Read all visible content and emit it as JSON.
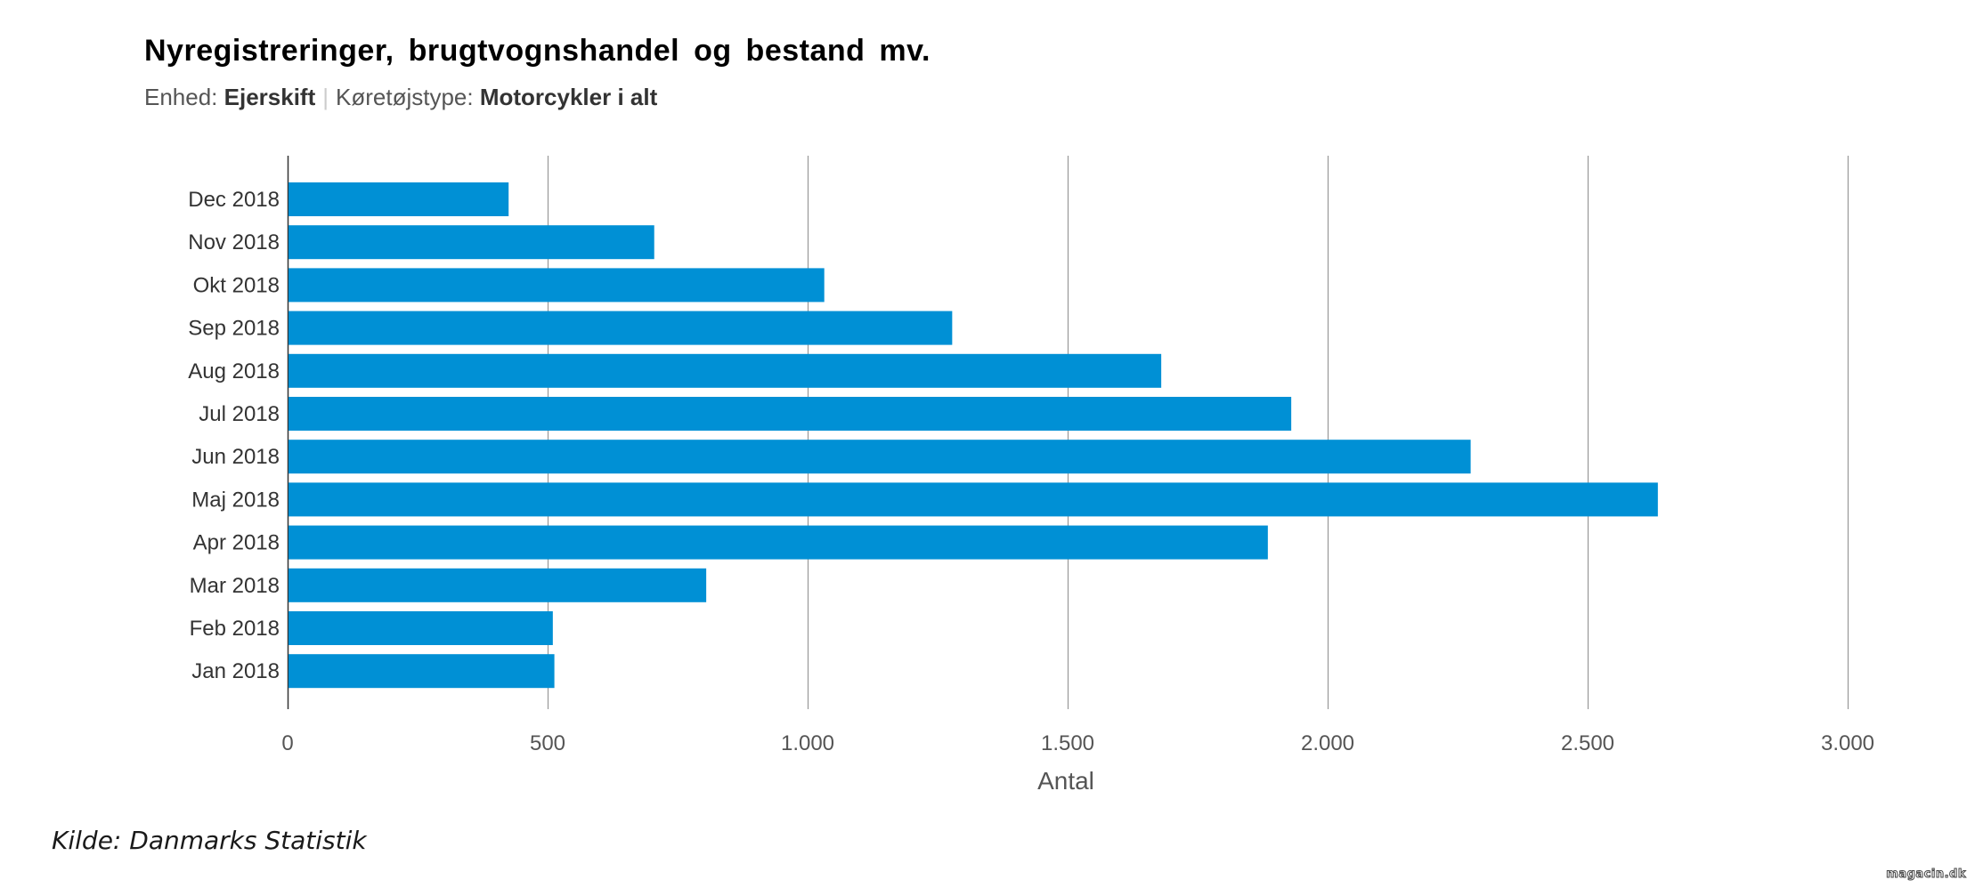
{
  "chart_data": {
    "type": "bar",
    "orientation": "horizontal",
    "title": "Nyregistreringer, brugtvognshandel og bestand mv.",
    "subtitle": {
      "unit_label": "Enhed:",
      "unit_value": "Ejerskift",
      "type_label": "Køretøjstype:",
      "type_value": "Motorcykler i alt"
    },
    "categories": [
      "Dec 2018",
      "Nov 2018",
      "Okt 2018",
      "Sep 2018",
      "Aug 2018",
      "Jul 2018",
      "Jun 2018",
      "Maj 2018",
      "Apr 2018",
      "Mar 2018",
      "Feb 2018",
      "Jan 2018"
    ],
    "values": [
      425,
      705,
      1032,
      1278,
      1680,
      1930,
      2275,
      2635,
      1885,
      805,
      510,
      513
    ],
    "xlabel": "Antal",
    "ylabel": "",
    "xlim": [
      0,
      3000
    ],
    "xticks": [
      0,
      500,
      1000,
      1500,
      2000,
      2500,
      3000
    ],
    "xtick_labels": [
      "0",
      "500",
      "1.000",
      "1.500",
      "2.000",
      "2.500",
      "3.000"
    ],
    "grid": "vertical",
    "bar_color": "#0090d5",
    "grid_color": "#999999"
  },
  "source": "Kilde: Danmarks Statistik",
  "watermark": "magacin.dk"
}
